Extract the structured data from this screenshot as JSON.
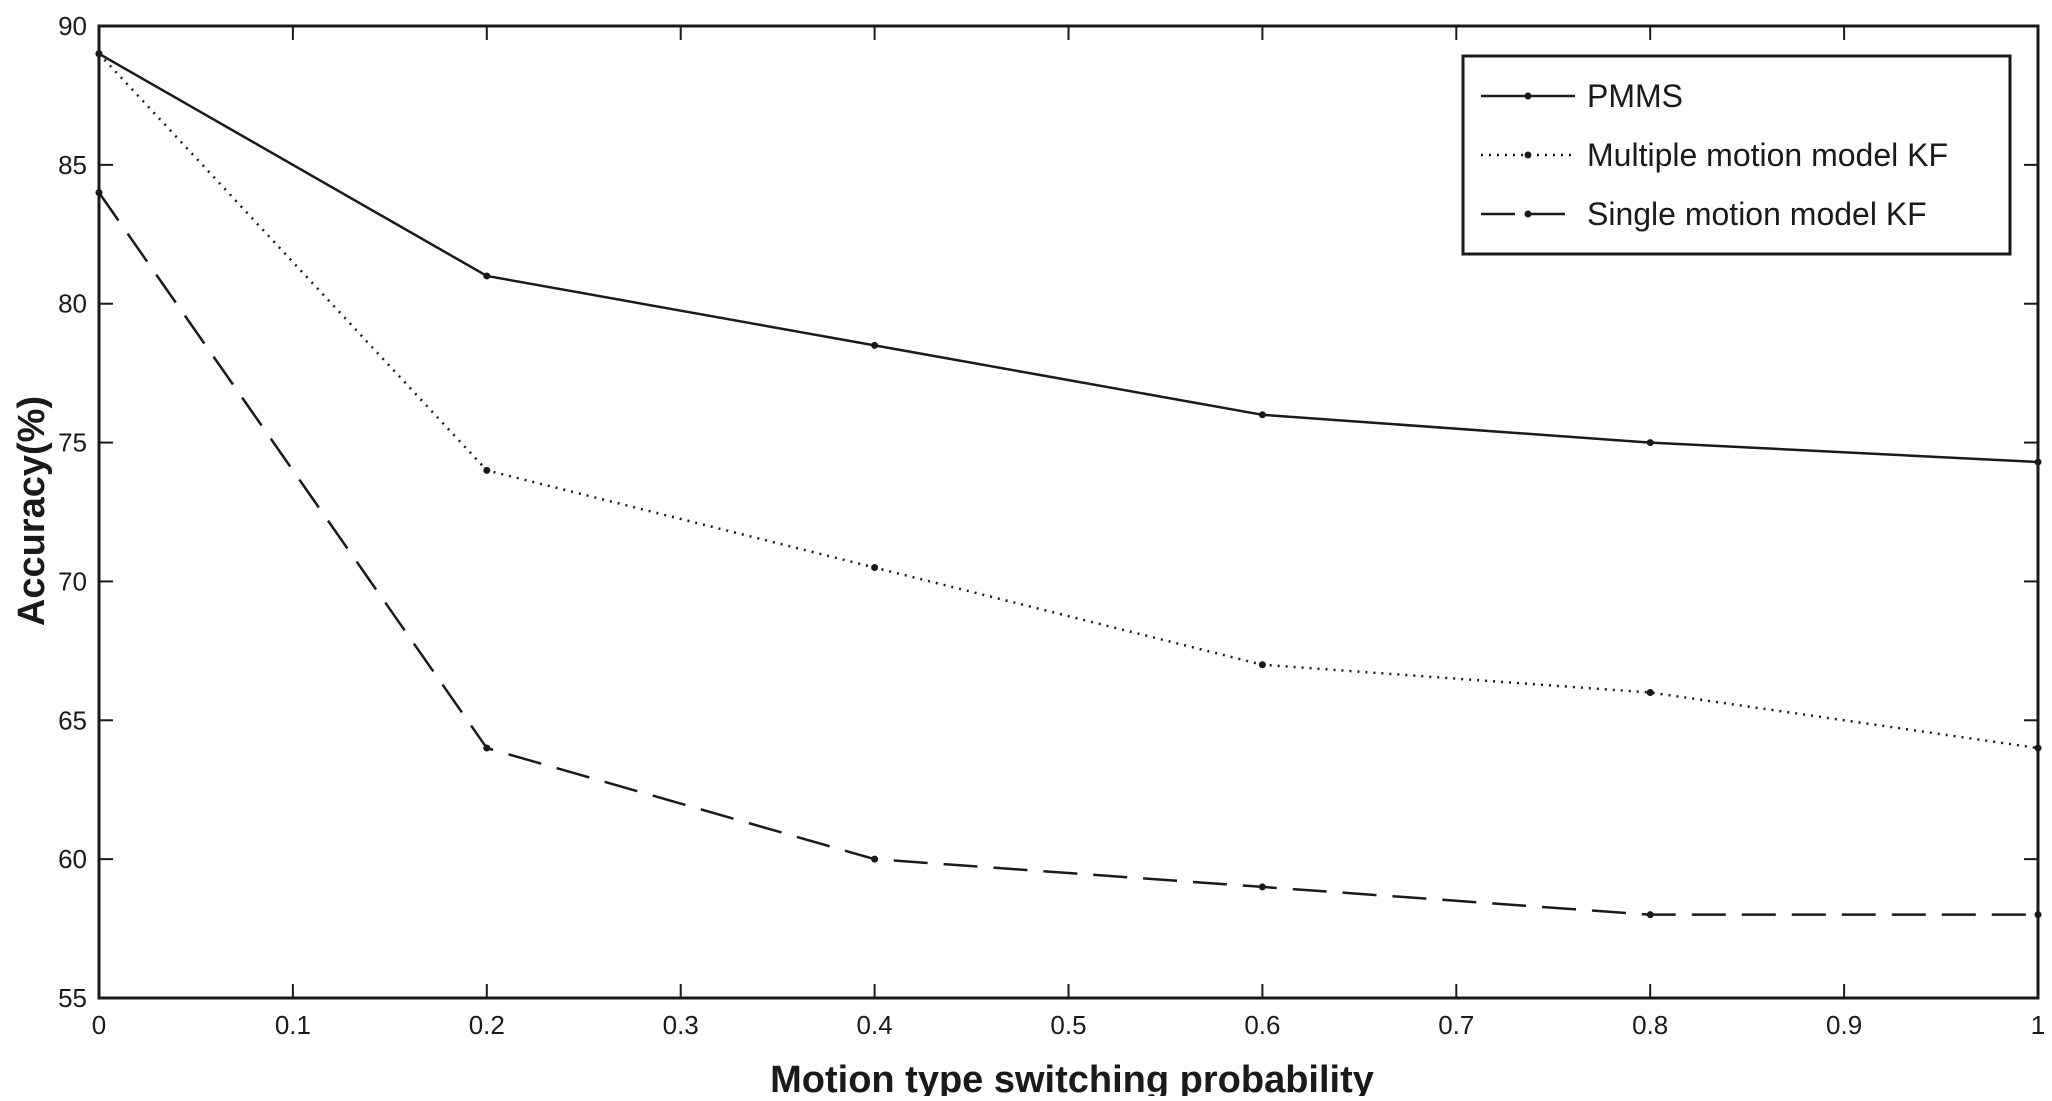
{
  "chart_data": {
    "type": "line",
    "title": "",
    "xlabel": "Motion type switching probability",
    "ylabel": "Accuracy(%)",
    "xlim": [
      0,
      1
    ],
    "ylim": [
      55,
      90
    ],
    "xticks": [
      0,
      0.1,
      0.2,
      0.3,
      0.4,
      0.5,
      0.6,
      0.7,
      0.8,
      0.9,
      1
    ],
    "xtick_labels": [
      "0",
      "0.1",
      "0.2",
      "0.3",
      "0.4",
      "0.5",
      "0.6",
      "0.7",
      "0.8",
      "0.9",
      "1"
    ],
    "yticks": [
      55,
      60,
      65,
      70,
      75,
      80,
      85,
      90
    ],
    "ytick_labels": [
      "55",
      "60",
      "65",
      "70",
      "75",
      "80",
      "85",
      "90"
    ],
    "grid": false,
    "legend_position": "top-right",
    "x": [
      0,
      0.2,
      0.4,
      0.6,
      0.8,
      1
    ],
    "series": [
      {
        "name": "PMMS",
        "style": "solid",
        "color": "#1a1a1a",
        "values": [
          89,
          81,
          78.5,
          76,
          75,
          74.3
        ]
      },
      {
        "name": "Multiple motion model KF",
        "style": "dotted",
        "color": "#1a1a1a",
        "values": [
          89,
          74,
          70.5,
          67,
          66,
          64
        ]
      },
      {
        "name": "Single motion model KF",
        "style": "dashed",
        "color": "#1a1a1a",
        "values": [
          84,
          64,
          60,
          59,
          58,
          58
        ]
      }
    ]
  }
}
